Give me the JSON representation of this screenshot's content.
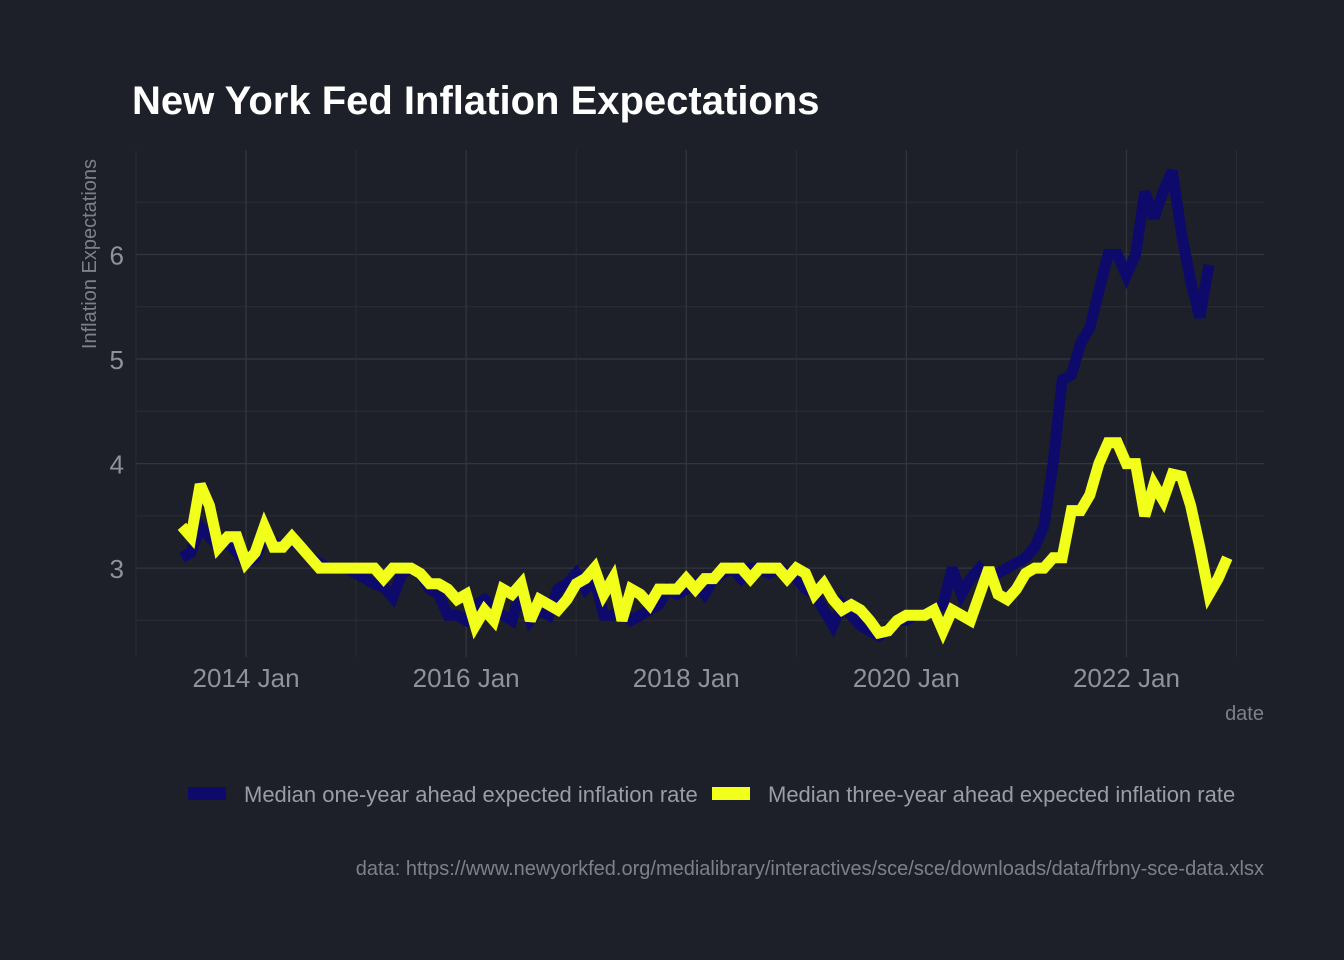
{
  "chart_data": {
    "type": "line",
    "title": "New York Fed Inflation Expectations",
    "xlabel": "date",
    "ylabel": "Inflation Expectations",
    "caption": "data: https://www.newyorkfed.org/medialibrary/interactives/sce/sce/downloads/data/frbny-sce-data.xlsx",
    "x_ticks": [
      "2014 Jan",
      "2016 Jan",
      "2018 Jan",
      "2020 Jan",
      "2022 Jan"
    ],
    "y_ticks": [
      3,
      4,
      5,
      6
    ],
    "ylim": [
      2.15,
      7.0
    ],
    "xlim": [
      "2013-01",
      "2023-04"
    ],
    "grid": true,
    "legend_position": "bottom",
    "series": [
      {
        "name": "Median one-year ahead expected inflation rate",
        "color": "#0d0a6b",
        "points": [
          [
            "2013-06",
            3.1
          ],
          [
            "2013-07",
            3.15
          ],
          [
            "2013-08",
            3.4
          ],
          [
            "2013-09",
            3.3
          ],
          [
            "2013-10",
            3.2
          ],
          [
            "2013-11",
            3.25
          ],
          [
            "2013-12",
            3.15
          ],
          [
            "2014-01",
            3.05
          ],
          [
            "2014-02",
            3.1
          ],
          [
            "2014-03",
            3.3
          ],
          [
            "2014-04",
            3.25
          ],
          [
            "2014-05",
            3.2
          ],
          [
            "2014-06",
            3.25
          ],
          [
            "2014-07",
            3.2
          ],
          [
            "2014-08",
            3.1
          ],
          [
            "2014-09",
            3.05
          ],
          [
            "2014-10",
            3.0
          ],
          [
            "2014-11",
            3.0
          ],
          [
            "2014-12",
            3.0
          ],
          [
            "2015-01",
            2.95
          ],
          [
            "2015-02",
            2.9
          ],
          [
            "2015-03",
            2.85
          ],
          [
            "2015-04",
            2.82
          ],
          [
            "2015-05",
            2.72
          ],
          [
            "2015-06",
            2.95
          ],
          [
            "2015-07",
            3.0
          ],
          [
            "2015-08",
            2.95
          ],
          [
            "2015-09",
            2.8
          ],
          [
            "2015-10",
            2.75
          ],
          [
            "2015-11",
            2.55
          ],
          [
            "2015-12",
            2.55
          ],
          [
            "2016-01",
            2.5
          ],
          [
            "2016-02",
            2.65
          ],
          [
            "2016-03",
            2.7
          ],
          [
            "2016-04",
            2.6
          ],
          [
            "2016-05",
            2.55
          ],
          [
            "2016-06",
            2.5
          ],
          [
            "2016-07",
            2.8
          ],
          [
            "2016-08",
            2.5
          ],
          [
            "2016-09",
            2.6
          ],
          [
            "2016-10",
            2.55
          ],
          [
            "2016-11",
            2.8
          ],
          [
            "2016-12",
            2.85
          ],
          [
            "2017-01",
            2.95
          ],
          [
            "2017-02",
            2.8
          ],
          [
            "2017-03",
            2.9
          ],
          [
            "2017-04",
            2.55
          ],
          [
            "2017-05",
            2.55
          ],
          [
            "2017-06",
            2.6
          ],
          [
            "2017-07",
            2.5
          ],
          [
            "2017-08",
            2.55
          ],
          [
            "2017-09",
            2.6
          ],
          [
            "2017-10",
            2.65
          ],
          [
            "2017-11",
            2.8
          ],
          [
            "2017-12",
            2.75
          ],
          [
            "2018-01",
            2.8
          ],
          [
            "2018-02",
            2.85
          ],
          [
            "2018-03",
            2.75
          ],
          [
            "2018-04",
            2.9
          ],
          [
            "2018-05",
            2.95
          ],
          [
            "2018-06",
            3.0
          ],
          [
            "2018-07",
            2.9
          ],
          [
            "2018-08",
            3.0
          ],
          [
            "2018-09",
            3.0
          ],
          [
            "2018-10",
            2.95
          ],
          [
            "2018-11",
            3.0
          ],
          [
            "2018-12",
            2.95
          ],
          [
            "2019-01",
            2.9
          ],
          [
            "2019-02",
            2.8
          ],
          [
            "2019-03",
            2.75
          ],
          [
            "2019-04",
            2.6
          ],
          [
            "2019-05",
            2.45
          ],
          [
            "2019-06",
            2.65
          ],
          [
            "2019-07",
            2.55
          ],
          [
            "2019-08",
            2.45
          ],
          [
            "2019-09",
            2.4
          ],
          [
            "2019-10",
            2.35
          ],
          [
            "2019-11",
            2.4
          ],
          [
            "2019-12",
            2.5
          ],
          [
            "2020-01",
            2.5
          ],
          [
            "2020-02",
            2.55
          ],
          [
            "2020-03",
            2.55
          ],
          [
            "2020-04",
            2.6
          ],
          [
            "2020-05",
            2.65
          ],
          [
            "2020-06",
            3.0
          ],
          [
            "2020-07",
            2.75
          ],
          [
            "2020-08",
            2.9
          ],
          [
            "2020-09",
            3.0
          ],
          [
            "2020-10",
            2.9
          ],
          [
            "2020-11",
            2.95
          ],
          [
            "2020-12",
            3.0
          ],
          [
            "2021-01",
            3.05
          ],
          [
            "2021-02",
            3.1
          ],
          [
            "2021-03",
            3.2
          ],
          [
            "2021-04",
            3.4
          ],
          [
            "2021-05",
            4.0
          ],
          [
            "2021-06",
            4.8
          ],
          [
            "2021-07",
            4.85
          ],
          [
            "2021-08",
            5.15
          ],
          [
            "2021-09",
            5.3
          ],
          [
            "2021-10",
            5.65
          ],
          [
            "2021-11",
            6.0
          ],
          [
            "2021-12",
            6.0
          ],
          [
            "2022-01",
            5.8
          ],
          [
            "2022-02",
            6.0
          ],
          [
            "2022-03",
            6.6
          ],
          [
            "2022-04",
            6.35
          ],
          [
            "2022-05",
            6.6
          ],
          [
            "2022-06",
            6.8
          ],
          [
            "2022-07",
            6.2
          ],
          [
            "2022-08",
            5.75
          ],
          [
            "2022-09",
            5.4
          ],
          [
            "2022-10",
            5.9
          ]
        ]
      },
      {
        "name": "Median three-year ahead expected inflation rate",
        "color": "#f2ff1a",
        "points": [
          [
            "2013-06",
            3.4
          ],
          [
            "2013-07",
            3.3
          ],
          [
            "2013-08",
            3.8
          ],
          [
            "2013-09",
            3.6
          ],
          [
            "2013-10",
            3.2
          ],
          [
            "2013-11",
            3.3
          ],
          [
            "2013-12",
            3.3
          ],
          [
            "2014-01",
            3.05
          ],
          [
            "2014-02",
            3.15
          ],
          [
            "2014-03",
            3.4
          ],
          [
            "2014-04",
            3.2
          ],
          [
            "2014-05",
            3.2
          ],
          [
            "2014-06",
            3.3
          ],
          [
            "2014-07",
            3.2
          ],
          [
            "2014-08",
            3.1
          ],
          [
            "2014-09",
            3.0
          ],
          [
            "2014-10",
            3.0
          ],
          [
            "2014-11",
            3.0
          ],
          [
            "2014-12",
            3.0
          ],
          [
            "2015-01",
            3.0
          ],
          [
            "2015-02",
            3.0
          ],
          [
            "2015-03",
            3.0
          ],
          [
            "2015-04",
            2.9
          ],
          [
            "2015-05",
            3.0
          ],
          [
            "2015-06",
            3.0
          ],
          [
            "2015-07",
            3.0
          ],
          [
            "2015-08",
            2.95
          ],
          [
            "2015-09",
            2.85
          ],
          [
            "2015-10",
            2.85
          ],
          [
            "2015-11",
            2.8
          ],
          [
            "2015-12",
            2.7
          ],
          [
            "2016-01",
            2.75
          ],
          [
            "2016-02",
            2.45
          ],
          [
            "2016-03",
            2.6
          ],
          [
            "2016-04",
            2.5
          ],
          [
            "2016-05",
            2.8
          ],
          [
            "2016-06",
            2.75
          ],
          [
            "2016-07",
            2.85
          ],
          [
            "2016-08",
            2.5
          ],
          [
            "2016-09",
            2.7
          ],
          [
            "2016-10",
            2.65
          ],
          [
            "2016-11",
            2.6
          ],
          [
            "2016-12",
            2.7
          ],
          [
            "2017-01",
            2.85
          ],
          [
            "2017-02",
            2.9
          ],
          [
            "2017-03",
            3.0
          ],
          [
            "2017-04",
            2.75
          ],
          [
            "2017-05",
            2.9
          ],
          [
            "2017-06",
            2.5
          ],
          [
            "2017-07",
            2.8
          ],
          [
            "2017-08",
            2.75
          ],
          [
            "2017-09",
            2.65
          ],
          [
            "2017-10",
            2.8
          ],
          [
            "2017-11",
            2.8
          ],
          [
            "2017-12",
            2.8
          ],
          [
            "2018-01",
            2.9
          ],
          [
            "2018-02",
            2.8
          ],
          [
            "2018-03",
            2.9
          ],
          [
            "2018-04",
            2.9
          ],
          [
            "2018-05",
            3.0
          ],
          [
            "2018-06",
            3.0
          ],
          [
            "2018-07",
            3.0
          ],
          [
            "2018-08",
            2.9
          ],
          [
            "2018-09",
            3.0
          ],
          [
            "2018-10",
            3.0
          ],
          [
            "2018-11",
            3.0
          ],
          [
            "2018-12",
            2.9
          ],
          [
            "2019-01",
            3.0
          ],
          [
            "2019-02",
            2.95
          ],
          [
            "2019-03",
            2.75
          ],
          [
            "2019-04",
            2.85
          ],
          [
            "2019-05",
            2.7
          ],
          [
            "2019-06",
            2.6
          ],
          [
            "2019-07",
            2.65
          ],
          [
            "2019-08",
            2.6
          ],
          [
            "2019-09",
            2.5
          ],
          [
            "2019-10",
            2.38
          ],
          [
            "2019-11",
            2.4
          ],
          [
            "2019-12",
            2.5
          ],
          [
            "2020-01",
            2.55
          ],
          [
            "2020-02",
            2.55
          ],
          [
            "2020-03",
            2.55
          ],
          [
            "2020-04",
            2.6
          ],
          [
            "2020-05",
            2.4
          ],
          [
            "2020-06",
            2.6
          ],
          [
            "2020-07",
            2.55
          ],
          [
            "2020-08",
            2.5
          ],
          [
            "2020-09",
            2.75
          ],
          [
            "2020-10",
            3.0
          ],
          [
            "2020-11",
            2.75
          ],
          [
            "2020-12",
            2.7
          ],
          [
            "2021-01",
            2.8
          ],
          [
            "2021-02",
            2.95
          ],
          [
            "2021-03",
            3.0
          ],
          [
            "2021-04",
            3.0
          ],
          [
            "2021-05",
            3.1
          ],
          [
            "2021-06",
            3.1
          ],
          [
            "2021-07",
            3.55
          ],
          [
            "2021-08",
            3.55
          ],
          [
            "2021-09",
            3.7
          ],
          [
            "2021-10",
            4.0
          ],
          [
            "2021-11",
            4.2
          ],
          [
            "2021-12",
            4.2
          ],
          [
            "2022-01",
            4.0
          ],
          [
            "2022-02",
            4.0
          ],
          [
            "2022-03",
            3.5
          ],
          [
            "2022-04",
            3.8
          ],
          [
            "2022-05",
            3.65
          ],
          [
            "2022-06",
            3.9
          ],
          [
            "2022-07",
            3.88
          ],
          [
            "2022-08",
            3.6
          ],
          [
            "2022-09",
            3.2
          ],
          [
            "2022-10",
            2.75
          ],
          [
            "2022-11",
            2.9
          ],
          [
            "2022-12",
            3.1
          ]
        ]
      }
    ]
  }
}
